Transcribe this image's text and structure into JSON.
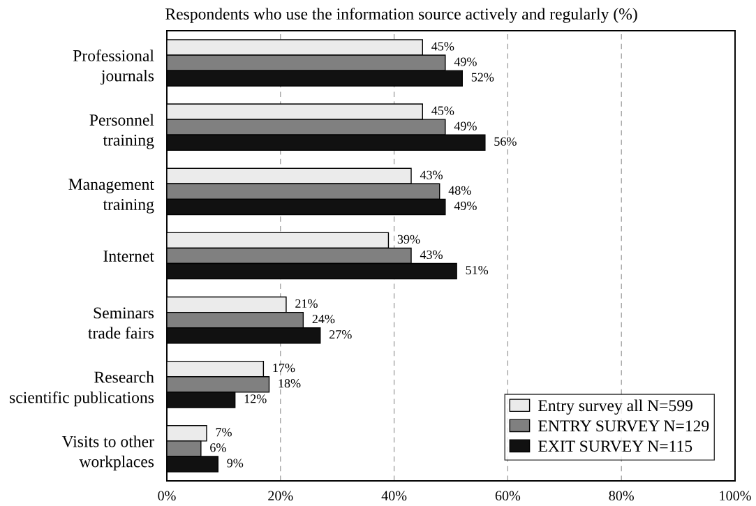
{
  "chart_data": {
    "type": "bar",
    "orientation": "horizontal",
    "title": "Respondents who use the information source actively and regularly (%)",
    "categories": [
      "Professional\njournals",
      "Personnel\ntraining",
      "Management\ntraining",
      "Internet",
      "Seminars\ntrade fairs",
      "Research\nscientific publications",
      "Visits to other\nworkplaces"
    ],
    "series": [
      {
        "name": "Entry survey all N=599",
        "color": "#ebebeb",
        "values": [
          45,
          45,
          43,
          39,
          21,
          17,
          7
        ],
        "value_labels": [
          "45%",
          "45%",
          "43%",
          "39%",
          "21%",
          "17%",
          "7%"
        ]
      },
      {
        "name": "ENTRY SURVEY N=129",
        "color": "#808080",
        "values": [
          49,
          49,
          48,
          43,
          24,
          18,
          6
        ],
        "value_labels": [
          "49%",
          "49%",
          "48%",
          "43%",
          "24%",
          "18%",
          "6%"
        ]
      },
      {
        "name": "EXIT SURVEY N=115",
        "color": "#111111",
        "values": [
          52,
          56,
          49,
          51,
          27,
          12,
          9
        ],
        "value_labels": [
          "52%",
          "56%",
          "49%",
          "51%",
          "27%",
          "12%",
          "9%"
        ]
      }
    ],
    "xlim": [
      0,
      100
    ],
    "xticks": [
      {
        "value": 0,
        "label": "0%"
      },
      {
        "value": 20,
        "label": "20%"
      },
      {
        "value": 40,
        "label": "40%"
      },
      {
        "value": 60,
        "label": "60%"
      },
      {
        "value": 80,
        "label": "80%"
      },
      {
        "value": 100,
        "label": "100%"
      }
    ],
    "grid": "x",
    "legend": "bottom right"
  }
}
